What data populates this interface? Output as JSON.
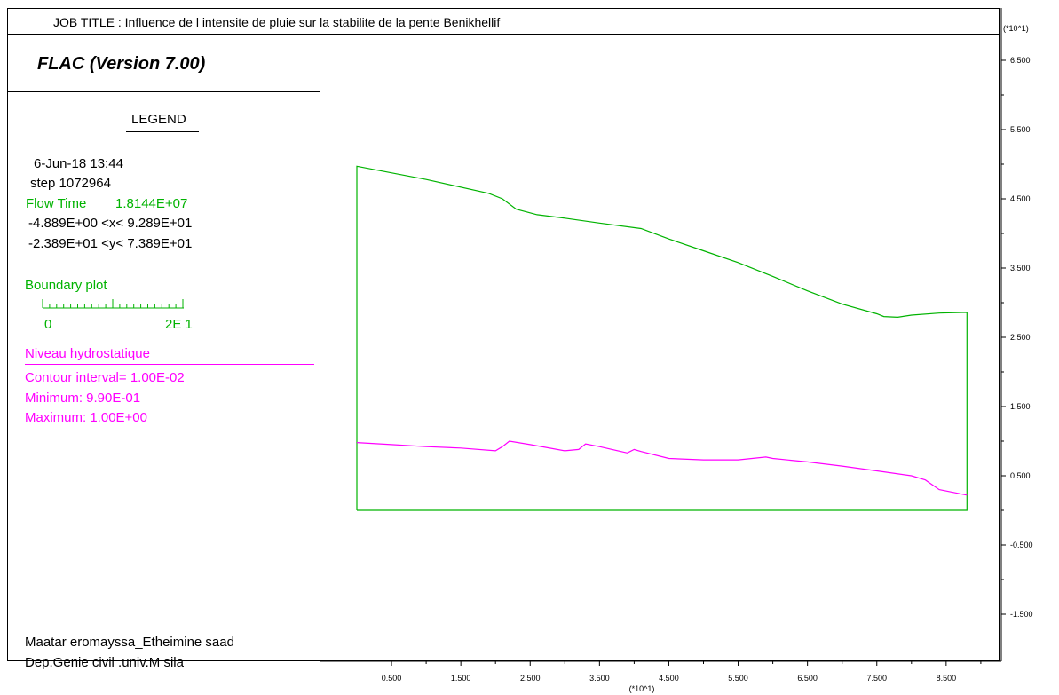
{
  "header": {
    "job_title": "JOB TITLE : Influence de l intensite de pluie sur la stabilite de la pente Benikhellif",
    "y_unit": "(*10^1)"
  },
  "legend": {
    "version": "FLAC (Version 7.00)",
    "title": "LEGEND",
    "date": "6-Jun-18  13:44",
    "step": "step  1072964",
    "flow_time_label": "Flow Time",
    "flow_time_value": "1.8144E+07",
    "x_range": "-4.889E+00 <x<  9.289E+01",
    "y_range": "-2.389E+01 <y<  7.389E+01",
    "boundary_label": "Boundary plot",
    "scale_min": "0",
    "scale_max": "2E  1",
    "niveau_label": "Niveau hydrostatique",
    "contour_interval": "Contour interval=  1.00E-02",
    "minimum": "Minimum:  9.90E-01",
    "maximum": "Maximum:   1.00E+00",
    "author": "Maatar eromayssa_Etheimine saad",
    "department": "Dep.Genie civil .univ.M sila"
  },
  "colors": {
    "boundary": "#00b300",
    "hydrostatic": "#ff00ff",
    "frame": "#000000"
  },
  "chart_data": {
    "type": "line",
    "title": "",
    "xlabel": "(*10^1)",
    "ylabel": "(*10^1)",
    "xlim": [
      -0.4889,
      9.289
    ],
    "ylim": [
      -2.389,
      7.389
    ],
    "x_ticks": [
      "0.500",
      "1.500",
      "2.500",
      "3.500",
      "4.500",
      "5.500",
      "6.500",
      "7.500",
      "8.500"
    ],
    "y_ticks": [
      "6.500",
      "5.500",
      "4.500",
      "3.500",
      "2.500",
      "1.500",
      "0.500",
      "-0.500",
      "-1.500"
    ],
    "series": [
      {
        "name": "Boundary plot",
        "x": [
          0,
          0,
          1.0,
          1.9,
          2.1,
          2.3,
          2.6,
          3.0,
          3.5,
          4.1,
          4.5,
          5.0,
          5.5,
          6.0,
          6.5,
          7.0,
          7.5,
          7.6,
          7.8,
          8.0,
          8.4,
          8.8,
          8.8,
          0
        ],
        "y": [
          0,
          4.97,
          4.78,
          4.58,
          4.5,
          4.35,
          4.27,
          4.22,
          4.15,
          4.07,
          3.92,
          3.75,
          3.58,
          3.38,
          3.17,
          2.98,
          2.84,
          2.8,
          2.79,
          2.82,
          2.85,
          2.86,
          0,
          0
        ],
        "color": "#00b300"
      },
      {
        "name": "Niveau hydrostatique",
        "x": [
          0,
          0.5,
          1.0,
          1.5,
          2.0,
          2.1,
          2.2,
          2.5,
          3.0,
          3.2,
          3.3,
          3.5,
          3.9,
          4.0,
          4.1,
          4.5,
          5.0,
          5.5,
          5.9,
          6.0,
          6.5,
          7.0,
          7.5,
          8.0,
          8.2,
          8.4,
          8.8
        ],
        "y": [
          0.98,
          0.95,
          0.92,
          0.9,
          0.86,
          0.92,
          1.0,
          0.95,
          0.86,
          0.88,
          0.96,
          0.92,
          0.83,
          0.88,
          0.85,
          0.75,
          0.73,
          0.73,
          0.77,
          0.75,
          0.7,
          0.64,
          0.57,
          0.5,
          0.44,
          0.3,
          0.22
        ],
        "color": "#ff00ff"
      }
    ]
  }
}
